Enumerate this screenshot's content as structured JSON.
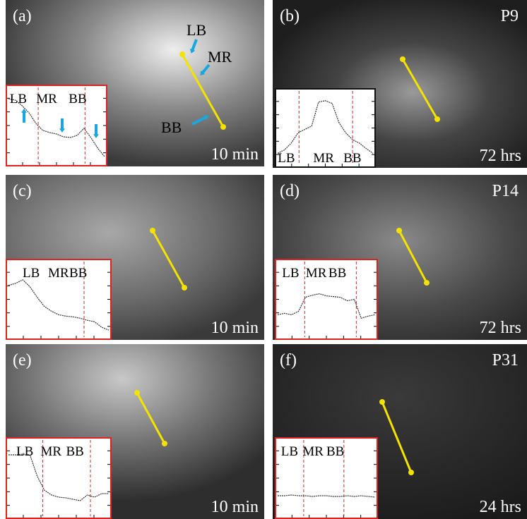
{
  "panels": [
    {
      "label": "(a)",
      "time": "10 min",
      "annotations": [
        "LB",
        "MR",
        "BB"
      ],
      "inset_labels": [
        "LB",
        "MR",
        "BB"
      ]
    },
    {
      "label": "(b)",
      "patient": "P9",
      "time": "72 hrs",
      "inset_labels": [
        "LB",
        "MR",
        "BB"
      ]
    },
    {
      "label": "(c)",
      "time": "10 min",
      "inset_labels": [
        "LB",
        "MR",
        "BB"
      ]
    },
    {
      "label": "(d)",
      "patient": "P14",
      "time": "72 hrs",
      "inset_labels": [
        "LB",
        "MR",
        "BB"
      ]
    },
    {
      "label": "(e)",
      "time": "10 min",
      "inset_labels": [
        "LB",
        "MR",
        "BB"
      ]
    },
    {
      "label": "(f)",
      "patient": "P31",
      "time": "24 hrs",
      "inset_labels": [
        "LB",
        "MR",
        "BB"
      ]
    }
  ]
}
